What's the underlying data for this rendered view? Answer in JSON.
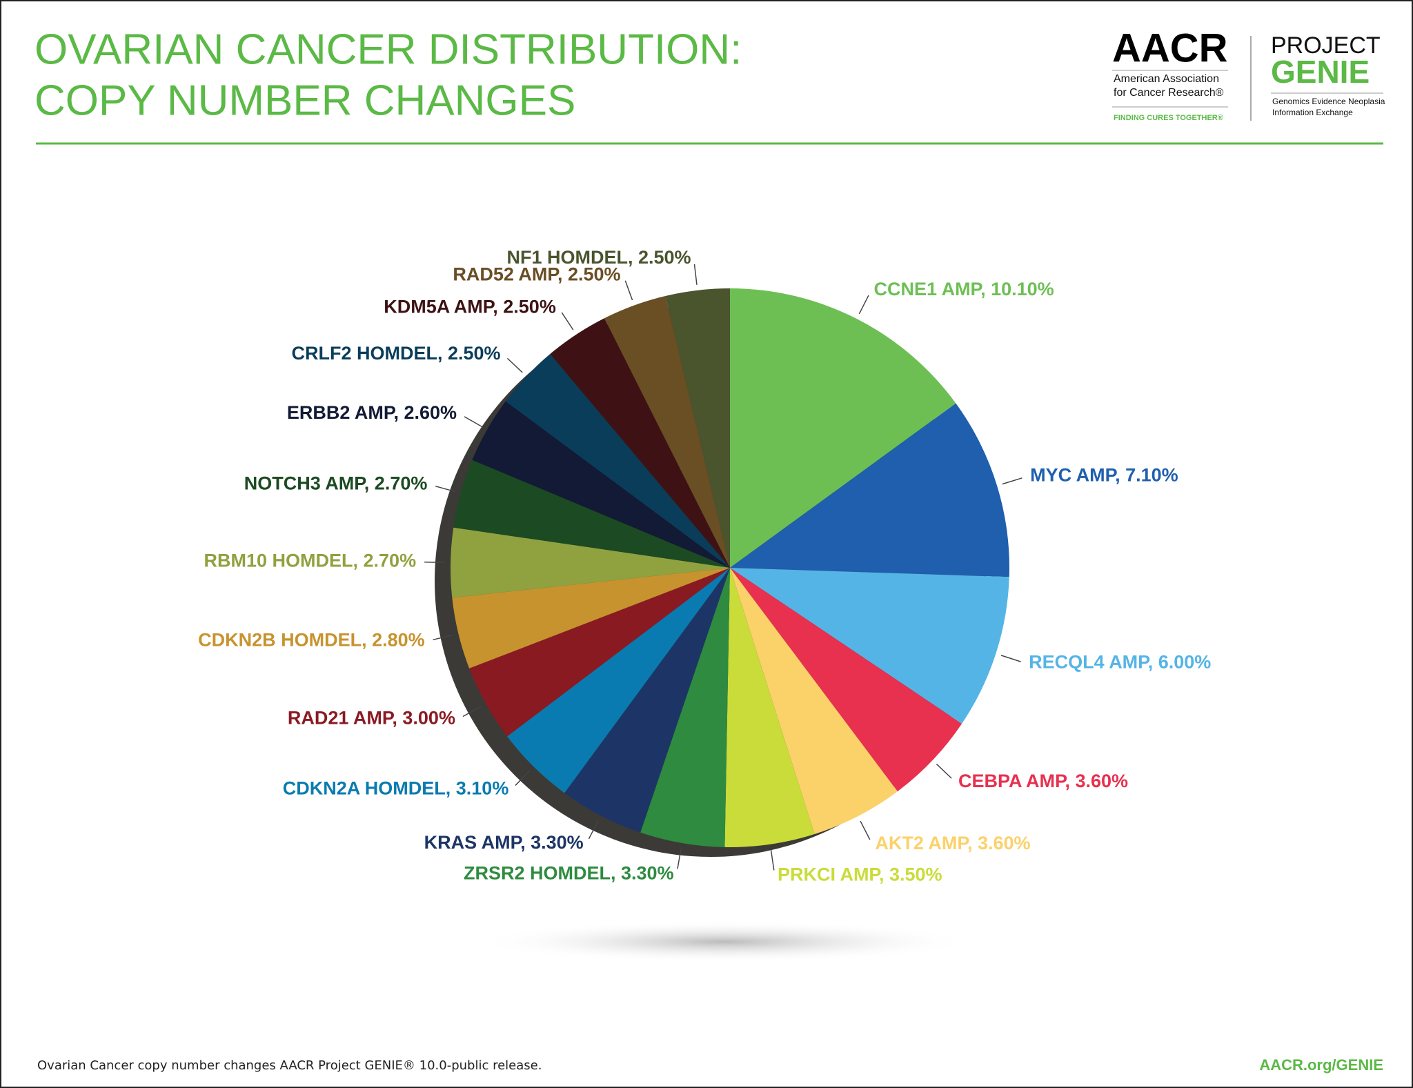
{
  "chart_data": {
    "type": "pie",
    "title": [
      "OVARIAN CANCER DISTRIBUTION:",
      "COPY NUMBER CHANGES"
    ],
    "labels": [
      "CCNE1 AMP, 10.10%",
      "MYC AMP, 7.10%",
      "RECQL4 AMP, 6.00%",
      "CEBPA AMP, 3.60%",
      "AKT2 AMP, 3.60%",
      "PRKCI AMP, 3.50%",
      "ZRSR2 HOMDEL, 3.30%",
      "KRAS AMP, 3.30%",
      "CDKN2A HOMDEL, 3.10%",
      "RAD21 AMP, 3.00%",
      "CDKN2B HOMDEL, 2.80%",
      "RBM10 HOMDEL, 2.70%",
      "NOTCH3 AMP, 2.70%",
      "ERBB2 AMP, 2.60%",
      "CRLF2 HOMDEL, 2.50%",
      "KDM5A AMP, 2.50%",
      "RAD52 AMP, 2.50%",
      "NF1 HOMDEL, 2.50%"
    ],
    "values": [
      10.1,
      7.1,
      6.0,
      3.6,
      3.6,
      3.5,
      3.3,
      3.3,
      3.1,
      3.0,
      2.8,
      2.7,
      2.7,
      2.6,
      2.5,
      2.5,
      2.5,
      2.5
    ],
    "colors": [
      "#6dbf54",
      "#1f5fae",
      "#55b4e6",
      "#e8304f",
      "#fbd16a",
      "#cadc39",
      "#2e8b3f",
      "#1d3566",
      "#0a7bb0",
      "#8a1a22",
      "#c7932f",
      "#8fa23f",
      "#1c4a22",
      "#121a35",
      "#0a3d5a",
      "#3e1214",
      "#6a4e24",
      "#4a542d"
    ]
  },
  "header": {
    "aacr": "AACR",
    "aacr_line1": "American Association",
    "aacr_line2": "for Cancer Research®",
    "aacr_tagline": "FINDING CURES TOGETHER®",
    "project": "PROJECT",
    "genie": "GENIE",
    "genie_line1": "Genomics Evidence Neoplasia",
    "genie_line2": "Information Exchange"
  },
  "footer": {
    "note": "Ovarian Cancer copy number changes AACR Project GENIE® 10.0-public release.",
    "link": "AACR.org/GENIE"
  }
}
